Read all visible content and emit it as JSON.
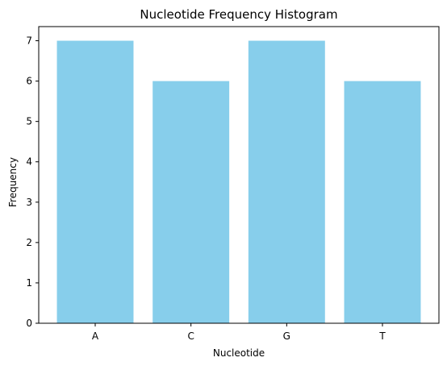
{
  "chart_data": {
    "type": "bar",
    "title": "Nucleotide Frequency Histogram",
    "xlabel": "Nucleotide",
    "ylabel": "Frequency",
    "categories": [
      "A",
      "C",
      "G",
      "T"
    ],
    "values": [
      7,
      6,
      7,
      6
    ],
    "ylim": [
      0,
      7.35
    ],
    "yticks": [
      0,
      1,
      2,
      3,
      4,
      5,
      6,
      7
    ],
    "bar_color": "#87CEEB",
    "grid": false,
    "legend": "none"
  }
}
